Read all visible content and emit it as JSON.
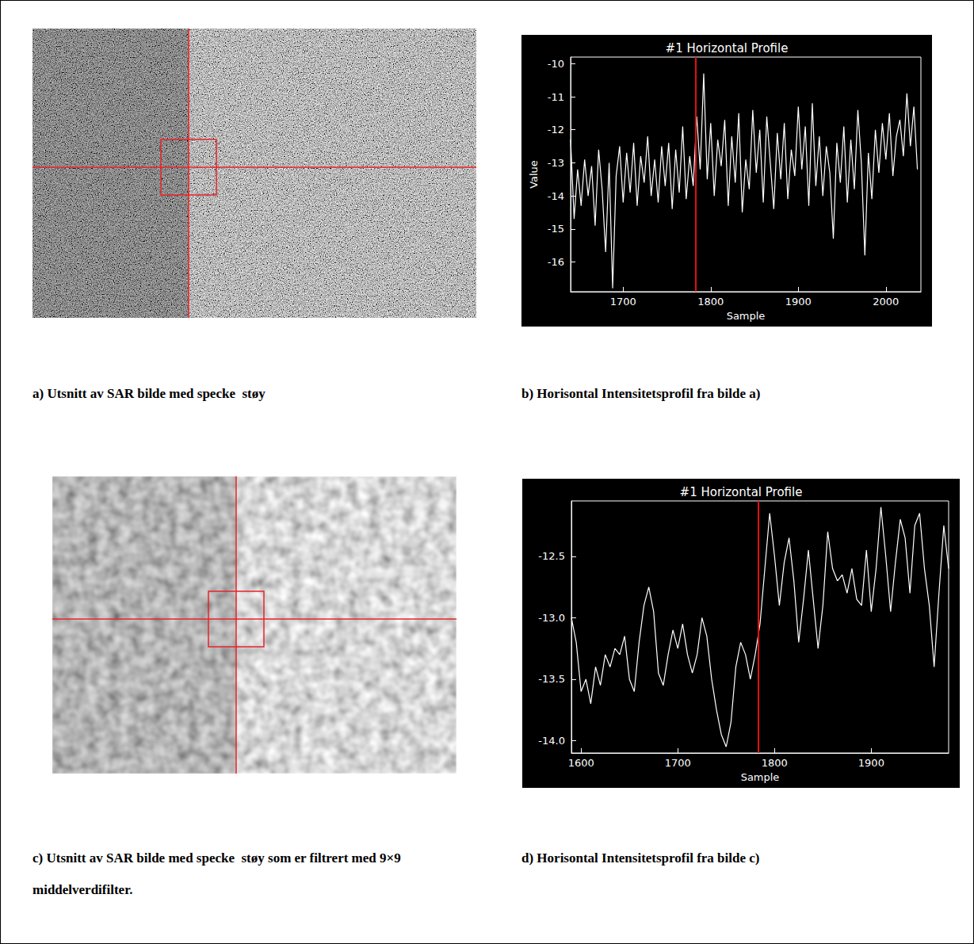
{
  "images": [
    {
      "caption": "a) Utsnitt av SAR bilde med specke  støy"
    },
    {
      "caption": "c) Utsnitt av SAR bilde med specke  støy som er filtrert med 9×9 middelverdifilter."
    }
  ],
  "chart_data": [
    {
      "type": "line",
      "title": "#1 Horizontal Profile",
      "x_label": "Sample",
      "y_label": "Value",
      "caption": "b) Horisontal Intensitetsprofil fra bilde a)",
      "color": "#ffffff",
      "cursor_x": 1783,
      "xlim": [
        1640,
        2040
      ],
      "ylim": [
        -16.9,
        -9.8
      ],
      "xticks": [
        1700,
        1800,
        1900,
        2000
      ],
      "yticks": [
        -16,
        -15,
        -14,
        -13,
        -12,
        -11,
        -10
      ],
      "x": [
        1640,
        1644,
        1648,
        1652,
        1656,
        1660,
        1664,
        1668,
        1672,
        1676,
        1680,
        1684,
        1688,
        1692,
        1696,
        1700,
        1704,
        1708,
        1712,
        1716,
        1720,
        1724,
        1728,
        1732,
        1736,
        1740,
        1744,
        1748,
        1752,
        1756,
        1760,
        1764,
        1768,
        1772,
        1776,
        1780,
        1784,
        1788,
        1792,
        1796,
        1800,
        1804,
        1808,
        1812,
        1816,
        1820,
        1824,
        1828,
        1832,
        1836,
        1840,
        1844,
        1848,
        1852,
        1856,
        1860,
        1864,
        1868,
        1872,
        1876,
        1880,
        1884,
        1888,
        1892,
        1896,
        1900,
        1904,
        1908,
        1912,
        1916,
        1920,
        1924,
        1928,
        1932,
        1936,
        1940,
        1944,
        1948,
        1952,
        1956,
        1960,
        1964,
        1968,
        1972,
        1976,
        1980,
        1984,
        1988,
        1992,
        1996,
        2000,
        2004,
        2008,
        2012,
        2016,
        2020,
        2024,
        2028,
        2032,
        2036
      ],
      "values": [
        -12.3,
        -14.7,
        -13.2,
        -14.3,
        -12.9,
        -14.0,
        -13.1,
        -14.9,
        -12.6,
        -13.8,
        -15.7,
        -13.0,
        -16.8,
        -13.4,
        -12.5,
        -14.2,
        -12.7,
        -13.9,
        -12.4,
        -14.3,
        -12.8,
        -13.6,
        -12.2,
        -14.0,
        -12.9,
        -14.2,
        -12.5,
        -13.7,
        -12.4,
        -14.4,
        -12.6,
        -13.9,
        -11.9,
        -14.1,
        -12.8,
        -13.7,
        -11.6,
        -13.2,
        -10.3,
        -13.5,
        -11.8,
        -14.0,
        -12.3,
        -13.1,
        -11.7,
        -14.3,
        -12.2,
        -13.6,
        -11.5,
        -14.5,
        -12.9,
        -13.8,
        -11.4,
        -13.3,
        -12.0,
        -14.2,
        -11.6,
        -13.0,
        -14.4,
        -12.1,
        -13.5,
        -11.8,
        -14.1,
        -12.6,
        -13.4,
        -11.3,
        -13.2,
        -11.9,
        -14.3,
        -11.2,
        -13.7,
        -12.2,
        -14.0,
        -12.5,
        -13.3,
        -15.3,
        -12.4,
        -13.6,
        -11.9,
        -14.2,
        -12.3,
        -13.8,
        -11.4,
        -13.0,
        -15.8,
        -12.7,
        -14.1,
        -12.0,
        -13.3,
        -11.8,
        -12.9,
        -11.5,
        -13.4,
        -12.2,
        -11.7,
        -12.8,
        -10.9,
        -12.5,
        -11.3,
        -13.2
      ]
    },
    {
      "type": "line",
      "title": "#1 Horizontal Profile",
      "x_label": "Sample",
      "caption": "d) Horisontal Intensitetsprofil fra bilde c)",
      "color": "#ffffff",
      "cursor_x": 1783,
      "xlim": [
        1590,
        1980
      ],
      "ylim": [
        -14.1,
        -12.05
      ],
      "xticks": [
        1600,
        1700,
        1800,
        1900
      ],
      "yticks": [
        {
          "value": -14,
          "label": "-14.0"
        },
        -13.5,
        {
          "value": -13,
          "label": "-13.0"
        },
        -12.5
      ],
      "x": [
        1590,
        1595,
        1600,
        1605,
        1610,
        1615,
        1620,
        1625,
        1630,
        1635,
        1640,
        1645,
        1650,
        1655,
        1660,
        1665,
        1670,
        1675,
        1680,
        1685,
        1690,
        1695,
        1700,
        1705,
        1710,
        1715,
        1720,
        1725,
        1730,
        1735,
        1740,
        1745,
        1750,
        1755,
        1760,
        1765,
        1770,
        1775,
        1780,
        1785,
        1790,
        1795,
        1800,
        1805,
        1810,
        1815,
        1820,
        1825,
        1830,
        1835,
        1840,
        1845,
        1850,
        1855,
        1860,
        1865,
        1870,
        1875,
        1880,
        1885,
        1890,
        1895,
        1900,
        1905,
        1910,
        1915,
        1920,
        1925,
        1930,
        1935,
        1940,
        1945,
        1950,
        1955,
        1960,
        1965,
        1970,
        1975,
        1980
      ],
      "values": [
        -13.0,
        -13.2,
        -13.6,
        -13.5,
        -13.7,
        -13.4,
        -13.55,
        -13.3,
        -13.4,
        -13.25,
        -13.3,
        -13.15,
        -13.5,
        -13.6,
        -13.2,
        -12.9,
        -12.75,
        -12.95,
        -13.45,
        -13.55,
        -13.3,
        -13.1,
        -13.25,
        -13.05,
        -13.3,
        -13.45,
        -13.3,
        -13.0,
        -13.15,
        -13.5,
        -13.75,
        -13.95,
        -14.05,
        -13.85,
        -13.4,
        -13.2,
        -13.3,
        -13.5,
        -13.3,
        -13.05,
        -12.6,
        -12.15,
        -12.5,
        -12.9,
        -12.55,
        -12.35,
        -12.7,
        -13.2,
        -12.85,
        -12.45,
        -12.85,
        -13.25,
        -12.9,
        -12.3,
        -12.6,
        -12.7,
        -12.65,
        -12.8,
        -12.6,
        -12.85,
        -12.9,
        -12.45,
        -12.95,
        -12.6,
        -12.1,
        -12.5,
        -12.95,
        -12.55,
        -12.2,
        -12.35,
        -12.8,
        -12.25,
        -12.15,
        -12.6,
        -12.9,
        -13.4,
        -12.8,
        -12.25,
        -12.6
      ]
    }
  ]
}
